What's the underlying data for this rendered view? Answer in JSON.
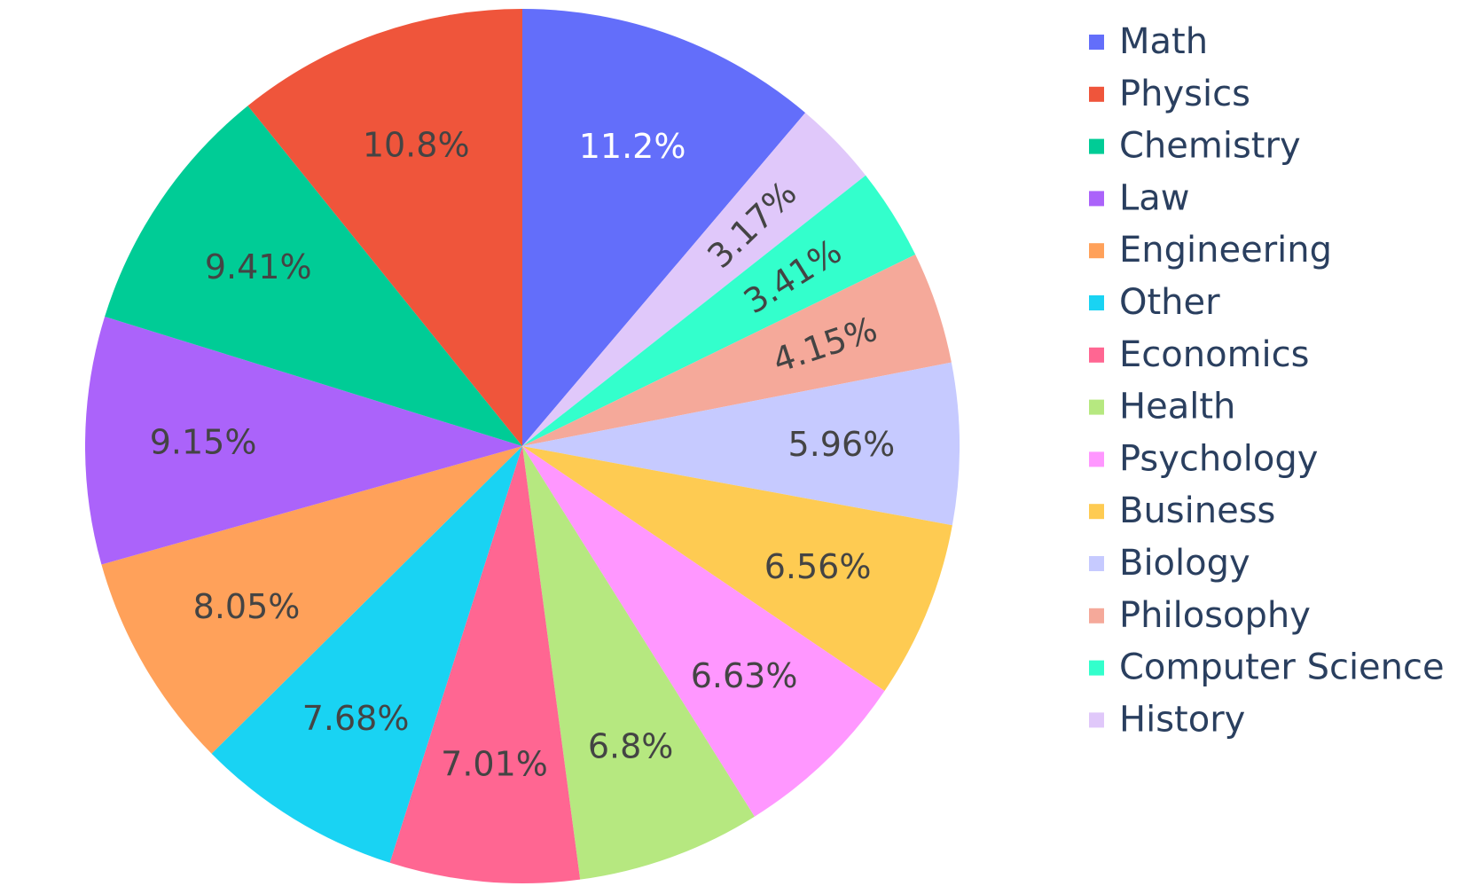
{
  "chart_data": {
    "type": "pie",
    "labels": [
      "Math",
      "History",
      "Computer Science",
      "Philosophy",
      "Biology",
      "Business",
      "Psychology",
      "Health",
      "Economics",
      "Other",
      "Engineering",
      "Law",
      "Chemistry",
      "Physics"
    ],
    "values": [
      11.2,
      3.17,
      3.41,
      4.15,
      5.96,
      6.56,
      6.63,
      6.8,
      7.01,
      7.68,
      8.05,
      9.15,
      9.41,
      10.8
    ],
    "value_labels": [
      "11.2%",
      "3.17%",
      "3.41%",
      "4.15%",
      "5.96%",
      "6.56%",
      "6.63%",
      "6.8%",
      "7.01%",
      "7.68%",
      "8.05%",
      "9.15%",
      "9.41%",
      "10.8%"
    ],
    "colors": [
      "#636efa",
      "#e0c8fa",
      "#33ffcc",
      "#f5a99a",
      "#c6caff",
      "#fecb52",
      "#ff97ff",
      "#b6e880",
      "#ff6692",
      "#19d3f3",
      "#ffa15a",
      "#ab63fa",
      "#00cc96",
      "#ef553b"
    ],
    "label_colors": [
      "#ffffff",
      "#444444",
      "#444444",
      "#444444",
      "#444444",
      "#444444",
      "#444444",
      "#444444",
      "#444444",
      "#444444",
      "#444444",
      "#444444",
      "#444444",
      "#444444"
    ],
    "rotated_labels": [
      "History",
      "Computer Science",
      "Philosophy"
    ],
    "direction": "clockwise",
    "start_angle_deg": 0,
    "legend_placement": "right",
    "legend_entries": [
      "Math",
      "Physics",
      "Chemistry",
      "Law",
      "Engineering",
      "Other",
      "Economics",
      "Health",
      "Psychology",
      "Business",
      "Biology",
      "Philosophy",
      "Computer Science",
      "History"
    ],
    "legend_colors": [
      "#636efa",
      "#ef553b",
      "#00cc96",
      "#ab63fa",
      "#ffa15a",
      "#19d3f3",
      "#ff6692",
      "#b6e880",
      "#ff97ff",
      "#fecb52",
      "#c6caff",
      "#f5a99a",
      "#33ffcc",
      "#e0c8fa"
    ]
  }
}
